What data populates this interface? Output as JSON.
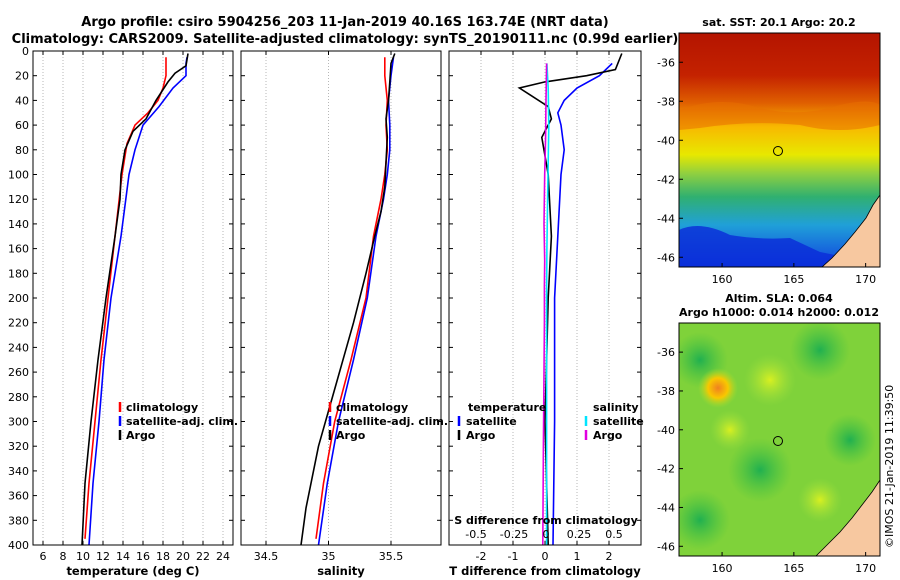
{
  "header": {
    "line1": "Argo profile: csiro 5904256_203 11-Jan-2019 40.16S 163.74E (NRT data)",
    "line2": "Climatology: CARS2009. Satellite-adjusted climatology: synTS_20190111.nc (0.99d earlier)"
  },
  "colors": {
    "climatology": "#ff0000",
    "satellite": "#0000ff",
    "argo": "#000000",
    "sat_salt": "#00e5ff",
    "sal_clim": "#e000e0",
    "land": "#f7c8a0"
  },
  "chart_data": [
    {
      "type": "line",
      "panel": "temperature",
      "xlabel": "temperature (deg C)",
      "ylabel": "",
      "xlim": [
        5,
        25
      ],
      "ylim": [
        400,
        0
      ],
      "xticks": [
        "6",
        "8",
        "10",
        "12",
        "14",
        "16",
        "18",
        "20",
        "22",
        "24"
      ],
      "yticks": [
        "0",
        "20",
        "40",
        "60",
        "80",
        "100",
        "120",
        "140",
        "160",
        "180",
        "200",
        "220",
        "240",
        "260",
        "280",
        "300",
        "320",
        "340",
        "360",
        "380",
        "400"
      ],
      "legend": [
        "climatology",
        "satellite-adj. clim.",
        "Argo"
      ],
      "series": [
        {
          "name": "climatology",
          "color": "red",
          "x": [
            18.3,
            18.3,
            18.0,
            17.5,
            16.5,
            15.2,
            14.4,
            13.9,
            13.2,
            12.5,
            11.8,
            11.2,
            10.6,
            10.2
          ],
          "y": [
            5,
            20,
            30,
            40,
            50,
            60,
            75,
            100,
            150,
            200,
            250,
            300,
            350,
            395
          ]
        },
        {
          "name": "satellite-adj. clim.",
          "color": "blue",
          "x": [
            20.4,
            20.3,
            20.3,
            19.0,
            17.6,
            16.0,
            15.2,
            14.6,
            13.8,
            12.8,
            12.1,
            11.6,
            11.0,
            10.6
          ],
          "y": [
            5,
            10,
            20,
            30,
            45,
            60,
            80,
            100,
            150,
            200,
            250,
            300,
            350,
            400
          ]
        },
        {
          "name": "Argo",
          "color": "black",
          "x": [
            20.5,
            20.3,
            19.2,
            18.5,
            17.3,
            16.3,
            15.0,
            14.2,
            13.8,
            13.7,
            13.2,
            12.3,
            11.5,
            10.8,
            10.2,
            9.9
          ],
          "y": [
            2,
            12,
            18,
            25,
            40,
            55,
            65,
            80,
            100,
            120,
            150,
            200,
            250,
            300,
            350,
            400
          ]
        }
      ]
    },
    {
      "type": "line",
      "panel": "salinity",
      "xlabel": "salinity",
      "ylabel": "",
      "xlim": [
        34.3,
        35.9
      ],
      "ylim": [
        400,
        0
      ],
      "xticks": [
        "34.5",
        "35",
        "35.5"
      ],
      "legend": [
        "climatology",
        "satellite-adj. clim.",
        "Argo"
      ],
      "series": [
        {
          "name": "climatology",
          "color": "red",
          "x": [
            35.45,
            35.45,
            35.47,
            35.46,
            35.47,
            35.45,
            35.42,
            35.36,
            35.3,
            35.18,
            35.05,
            34.96,
            34.9
          ],
          "y": [
            5,
            20,
            40,
            60,
            80,
            100,
            120,
            150,
            200,
            250,
            300,
            350,
            395
          ]
        },
        {
          "name": "satellite-adj. clim.",
          "color": "blue",
          "x": [
            35.52,
            35.5,
            35.48,
            35.49,
            35.49,
            35.47,
            35.44,
            35.38,
            35.31,
            35.2,
            35.08,
            34.99,
            34.92
          ],
          "y": [
            5,
            20,
            40,
            60,
            80,
            100,
            120,
            150,
            200,
            250,
            300,
            350,
            400
          ]
        },
        {
          "name": "Argo",
          "color": "black",
          "x": [
            35.53,
            35.5,
            35.49,
            35.48,
            35.46,
            35.47,
            35.46,
            35.45,
            35.42,
            35.37,
            35.3,
            35.2,
            35.06,
            34.92,
            34.82,
            34.78
          ],
          "y": [
            2,
            10,
            25,
            40,
            55,
            70,
            90,
            110,
            130,
            150,
            180,
            220,
            270,
            320,
            370,
            400
          ]
        }
      ]
    },
    {
      "type": "line",
      "panel": "difference",
      "xlabel": "T difference from climatology",
      "ylabel": "",
      "xlim": [
        -3,
        3
      ],
      "ylim": [
        400,
        0
      ],
      "xticks": [
        "-2",
        "-1",
        "0",
        "1",
        "2"
      ],
      "s_xticks": [
        "-0.5",
        "-0.25",
        "0",
        "0.25",
        "0.5"
      ],
      "s_xlabel": "S difference from climatology",
      "legend_temperature_title": "temperature",
      "legend_salinity_title": "salinity",
      "legend": [
        "satellite",
        "Argo",
        "satellite",
        "Argo"
      ],
      "series": [
        {
          "name": "T satellite",
          "color": "blue",
          "x": [
            2.1,
            1.7,
            1.0,
            0.6,
            0.4,
            0.5,
            0.6,
            0.5,
            0.4,
            0.3,
            0.3,
            0.3,
            0.25
          ],
          "y": [
            10,
            20,
            30,
            40,
            50,
            60,
            80,
            100,
            150,
            200,
            250,
            300,
            400
          ]
        },
        {
          "name": "T Argo",
          "color": "black",
          "x": [
            2.4,
            2.2,
            1.3,
            0.0,
            -0.8,
            -0.5,
            0.1,
            0.2,
            -0.1,
            0.1,
            0.2,
            0.1,
            0.0,
            0.1
          ],
          "y": [
            2,
            15,
            20,
            25,
            30,
            35,
            45,
            55,
            70,
            100,
            150,
            200,
            300,
            400
          ]
        },
        {
          "name": "S satellite",
          "color": "#00e5ff",
          "x": [
            0.06,
            0.1,
            0.12,
            0.1,
            0.08,
            0.06,
            0.05,
            0.05,
            0.05,
            0.05
          ],
          "y": [
            10,
            30,
            60,
            90,
            120,
            160,
            200,
            250,
            300,
            400
          ]
        },
        {
          "name": "S Argo",
          "color": "#e000e0",
          "x": [
            0.05,
            0.03,
            0.02,
            -0.01,
            -0.03,
            -0.01,
            -0.02,
            -0.02,
            -0.03,
            -0.05,
            -0.07
          ],
          "y": [
            10,
            40,
            70,
            100,
            140,
            170,
            190,
            220,
            260,
            320,
            400
          ]
        }
      ]
    },
    {
      "type": "heatmap",
      "panel": "sst_map",
      "title": "sat. SST: 20.1 Argo: 20.2",
      "xticks": [
        "160",
        "165",
        "170"
      ],
      "yticks": [
        "-36",
        "-38",
        "-40",
        "-42",
        "-44",
        "-46"
      ],
      "xlim": [
        157,
        171
      ],
      "ylim": [
        -46.5,
        -34.5
      ],
      "argo_lon": 163.74,
      "argo_lat": -40.16
    },
    {
      "type": "heatmap",
      "panel": "sla_map",
      "title": "Altim. SLA: 0.064",
      "subtitle": "Argo h1000: 0.014 h2000: 0.012",
      "xticks": [
        "160",
        "165",
        "170"
      ],
      "yticks": [
        "-36",
        "-38",
        "-40",
        "-42",
        "-44",
        "-46"
      ],
      "xlim": [
        157,
        171
      ],
      "ylim": [
        -46.5,
        -34.5
      ],
      "argo_lon": 163.74,
      "argo_lat": -40.16
    }
  ],
  "credit": "©IMOS 21-Jan-2019 11:39:50"
}
